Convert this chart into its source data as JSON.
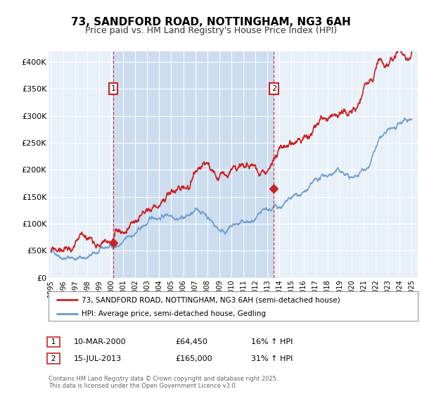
{
  "title": "73, SANDFORD ROAD, NOTTINGHAM, NG3 6AH",
  "subtitle": "Price paid vs. HM Land Registry's House Price Index (HPI)",
  "title_fontsize": 11,
  "subtitle_fontsize": 9,
  "bg_color": "#ffffff",
  "plot_bg_color": "#e8f0f8",
  "grid_color": "#ffffff",
  "red_color": "#cc2222",
  "blue_color": "#6699cc",
  "shade_color": "#ccddf0",
  "annotation_line_color": "#cc2222",
  "ylim": [
    0,
    420000
  ],
  "xlim_start": 1994.8,
  "xlim_end": 2025.5,
  "yticks": [
    0,
    50000,
    100000,
    150000,
    200000,
    250000,
    300000,
    350000,
    400000
  ],
  "ytick_labels": [
    "£0",
    "£50K",
    "£100K",
    "£150K",
    "£200K",
    "£250K",
    "£300K",
    "£350K",
    "£400K"
  ],
  "xticks": [
    1995,
    1996,
    1997,
    1998,
    1999,
    2000,
    2001,
    2002,
    2003,
    2004,
    2005,
    2006,
    2007,
    2008,
    2009,
    2010,
    2011,
    2012,
    2013,
    2014,
    2015,
    2016,
    2017,
    2018,
    2019,
    2020,
    2021,
    2022,
    2023,
    2024,
    2025
  ],
  "marker1_x": 2000.19,
  "marker1_y": 64450,
  "marker2_x": 2013.54,
  "marker2_y": 165000,
  "legend_line1": "73, SANDFORD ROAD, NOTTINGHAM, NG3 6AH (semi-detached house)",
  "legend_line2": "HPI: Average price, semi-detached house, Gedling",
  "marker1_label": "1",
  "marker1_date": "10-MAR-2000",
  "marker1_price": "£64,450",
  "marker1_hpi": "16% ↑ HPI",
  "marker2_label": "2",
  "marker2_date": "15-JUL-2013",
  "marker2_price": "£165,000",
  "marker2_hpi": "31% ↑ HPI",
  "footer": "Contains HM Land Registry data © Crown copyright and database right 2025.\nThis data is licensed under the Open Government Licence v3.0."
}
